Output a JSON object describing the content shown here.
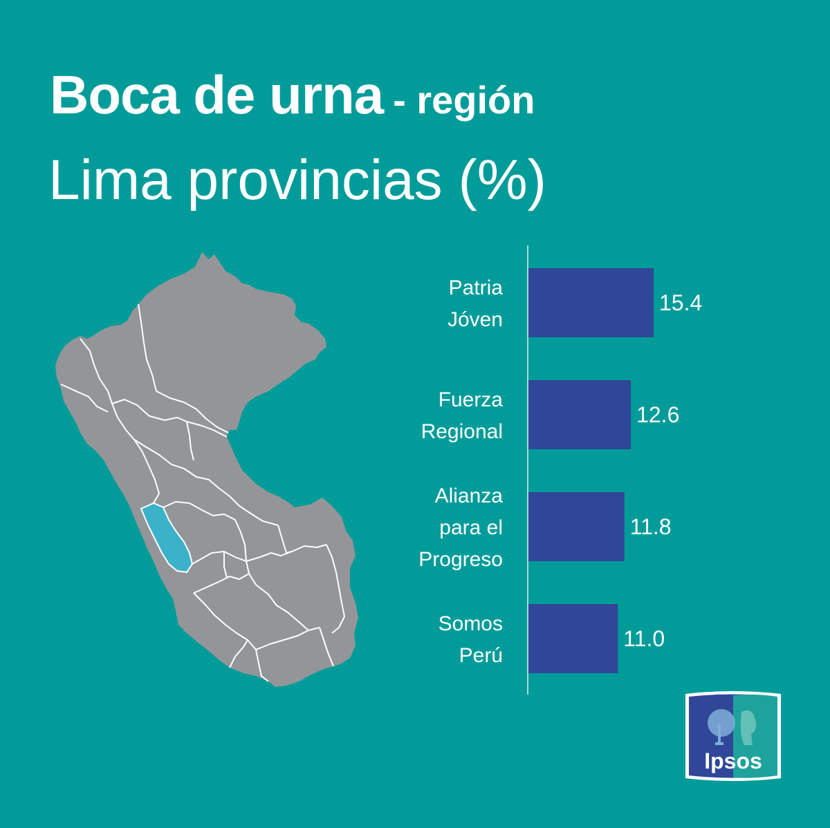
{
  "header": {
    "title": "Boca de urna",
    "title_suffix": "- región",
    "subtitle": "Lima provincias (%)"
  },
  "colors": {
    "background": "#019c9a",
    "bar": "#2f4699",
    "map_land": "#949598",
    "map_highlight": "#3ab2c9",
    "map_border": "#ffffff"
  },
  "map": {
    "icon": "peru-map-icon",
    "highlighted_region": "Lima provincias"
  },
  "chart_data": {
    "type": "bar",
    "orientation": "horizontal",
    "title": "Lima provincias (%)",
    "categories": [
      [
        "Patria",
        "Jóven"
      ],
      [
        "Fuerza",
        "Regional"
      ],
      [
        "Alianza",
        "para el",
        "Progreso"
      ],
      [
        "Somos",
        "Perú"
      ]
    ],
    "values": [
      15.4,
      12.6,
      11.8,
      11.0
    ],
    "value_labels": [
      "15.4",
      "12.6",
      "11.8",
      "11.0"
    ],
    "xlim": [
      0,
      15.4
    ],
    "xlabel": "",
    "ylabel": "",
    "grid": false,
    "legend": "none"
  },
  "logo": {
    "text": "Ipsos",
    "icon": "ipsos-logo-icon"
  }
}
